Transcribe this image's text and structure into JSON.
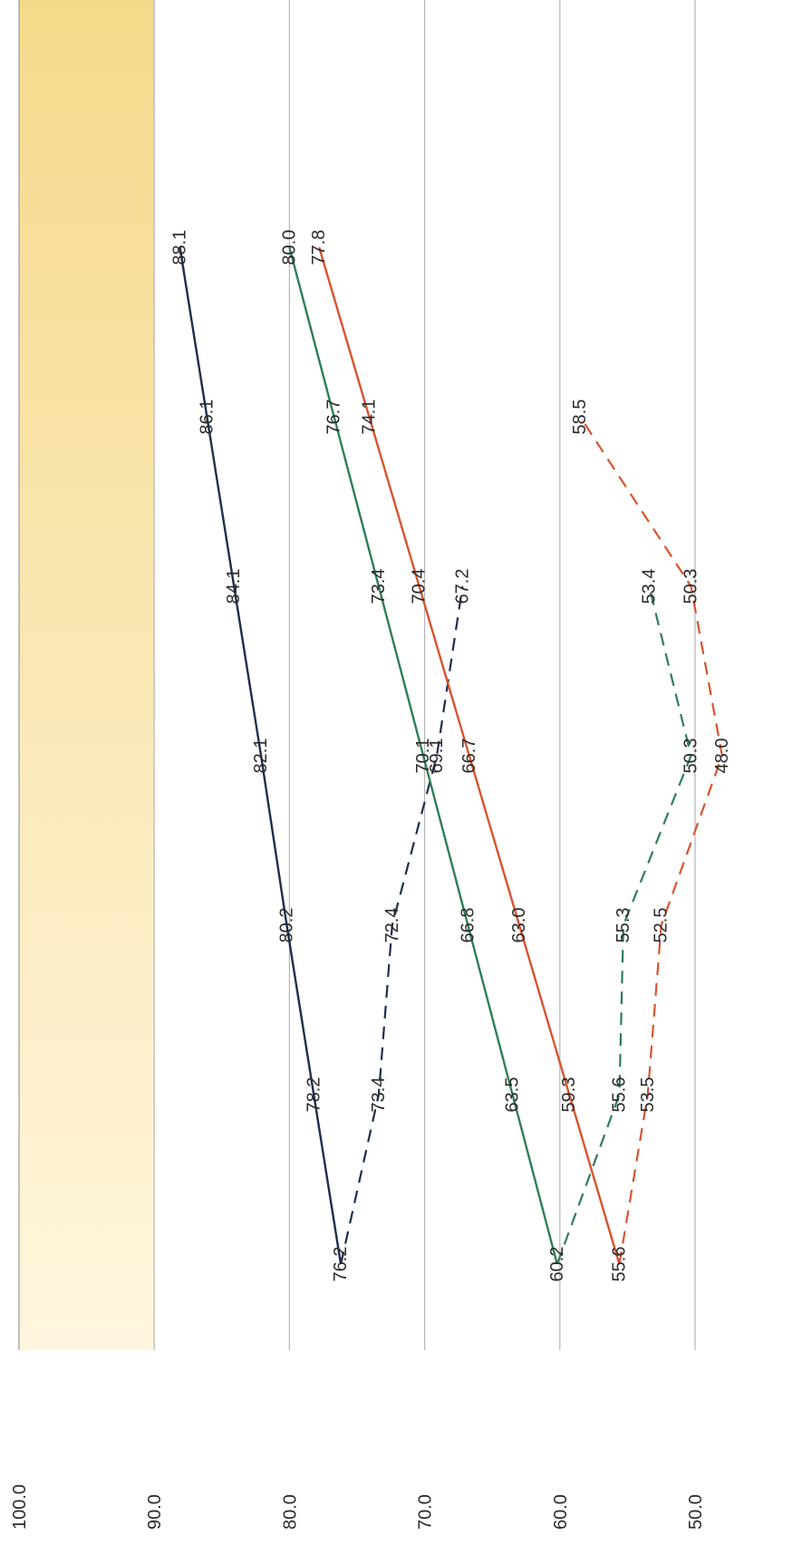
{
  "chart_data": {
    "type": "line",
    "orientation": "rotated-90",
    "ylim": [
      45.0,
      100.0
    ],
    "yticks": [
      "100.0",
      "90.0",
      "80.0",
      "70.0",
      "60.0",
      "50.0"
    ],
    "grid": true,
    "band": {
      "from": 90.0,
      "to": 100.0,
      "color_strong": "#f5d98b",
      "color_fade": "#fff6de"
    },
    "n_points": 10,
    "series": [
      {
        "line_style": "solid",
        "color": "#1f2d4f",
        "points": [
          [
            1,
            76.2
          ],
          [
            2,
            78.2
          ],
          [
            3,
            80.2
          ],
          [
            4,
            82.1
          ],
          [
            5,
            84.1
          ],
          [
            6,
            86.1
          ],
          [
            7,
            88.1
          ]
        ]
      },
      {
        "line_style": "dashed",
        "color": "#1f2d4f",
        "points": [
          [
            1,
            76.2
          ],
          [
            2,
            73.4
          ],
          [
            3,
            72.4
          ],
          [
            4,
            69.1
          ],
          [
            5,
            67.2
          ]
        ]
      },
      {
        "line_style": "solid",
        "color": "#2e7d57",
        "points": [
          [
            1,
            60.2
          ],
          [
            2,
            63.5
          ],
          [
            3,
            66.8
          ],
          [
            4,
            70.1
          ],
          [
            5,
            73.4
          ],
          [
            6,
            76.7
          ],
          [
            7,
            80.0
          ]
        ]
      },
      {
        "line_style": "solid",
        "color": "#d9532e",
        "points": [
          [
            1,
            55.6
          ],
          [
            2,
            59.3
          ],
          [
            3,
            63.0
          ],
          [
            4,
            66.7
          ],
          [
            5,
            70.4
          ],
          [
            6,
            74.1
          ],
          [
            7,
            77.8
          ]
        ]
      },
      {
        "line_style": "dashed",
        "color": "#2e7d57",
        "points": [
          [
            1,
            60.2
          ],
          [
            2,
            55.6
          ],
          [
            3,
            55.3
          ],
          [
            4,
            50.3
          ],
          [
            5,
            53.4
          ]
        ]
      },
      {
        "line_style": "dashed",
        "color": "#d9532e",
        "points": [
          [
            1,
            55.6
          ],
          [
            2,
            53.5
          ],
          [
            3,
            52.5
          ],
          [
            4,
            48.0
          ],
          [
            5,
            50.3
          ],
          [
            6,
            58.5
          ]
        ]
      }
    ]
  }
}
